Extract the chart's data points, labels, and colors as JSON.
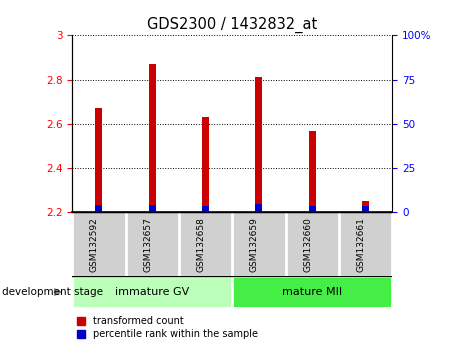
{
  "title": "GDS2300 / 1432832_at",
  "samples": [
    "GSM132592",
    "GSM132657",
    "GSM132658",
    "GSM132659",
    "GSM132660",
    "GSM132661"
  ],
  "red_values": [
    2.67,
    2.87,
    2.63,
    2.81,
    2.57,
    2.25
  ],
  "red_base": 2.2,
  "blue_top": [
    2.235,
    2.235,
    2.228,
    2.24,
    2.228,
    2.228
  ],
  "blue_base": 2.2,
  "ylim_left": [
    2.2,
    3.0
  ],
  "ylim_right": [
    0,
    100
  ],
  "yticks_left": [
    2.2,
    2.4,
    2.6,
    2.8,
    3.0
  ],
  "ytick_labels_left": [
    "2.2",
    "2.4",
    "2.6",
    "2.8",
    "3"
  ],
  "ytick_labels_right": [
    "0",
    "25",
    "50",
    "75",
    "100%"
  ],
  "yticks_right": [
    0,
    25,
    50,
    75,
    100
  ],
  "groups": [
    {
      "label": "immature GV",
      "start": 0,
      "end": 2,
      "color": "#bbffbb"
    },
    {
      "label": "mature MII",
      "start": 3,
      "end": 5,
      "color": "#44ee44"
    }
  ],
  "group_label": "development stage",
  "legend_red": "transformed count",
  "legend_blue": "percentile rank within the sample",
  "bar_width": 0.13,
  "red_color": "#cc0000",
  "blue_color": "#0000cc",
  "cell_bg": "#d0d0d0",
  "label_fontsize": 7.5,
  "title_fontsize": 10.5
}
